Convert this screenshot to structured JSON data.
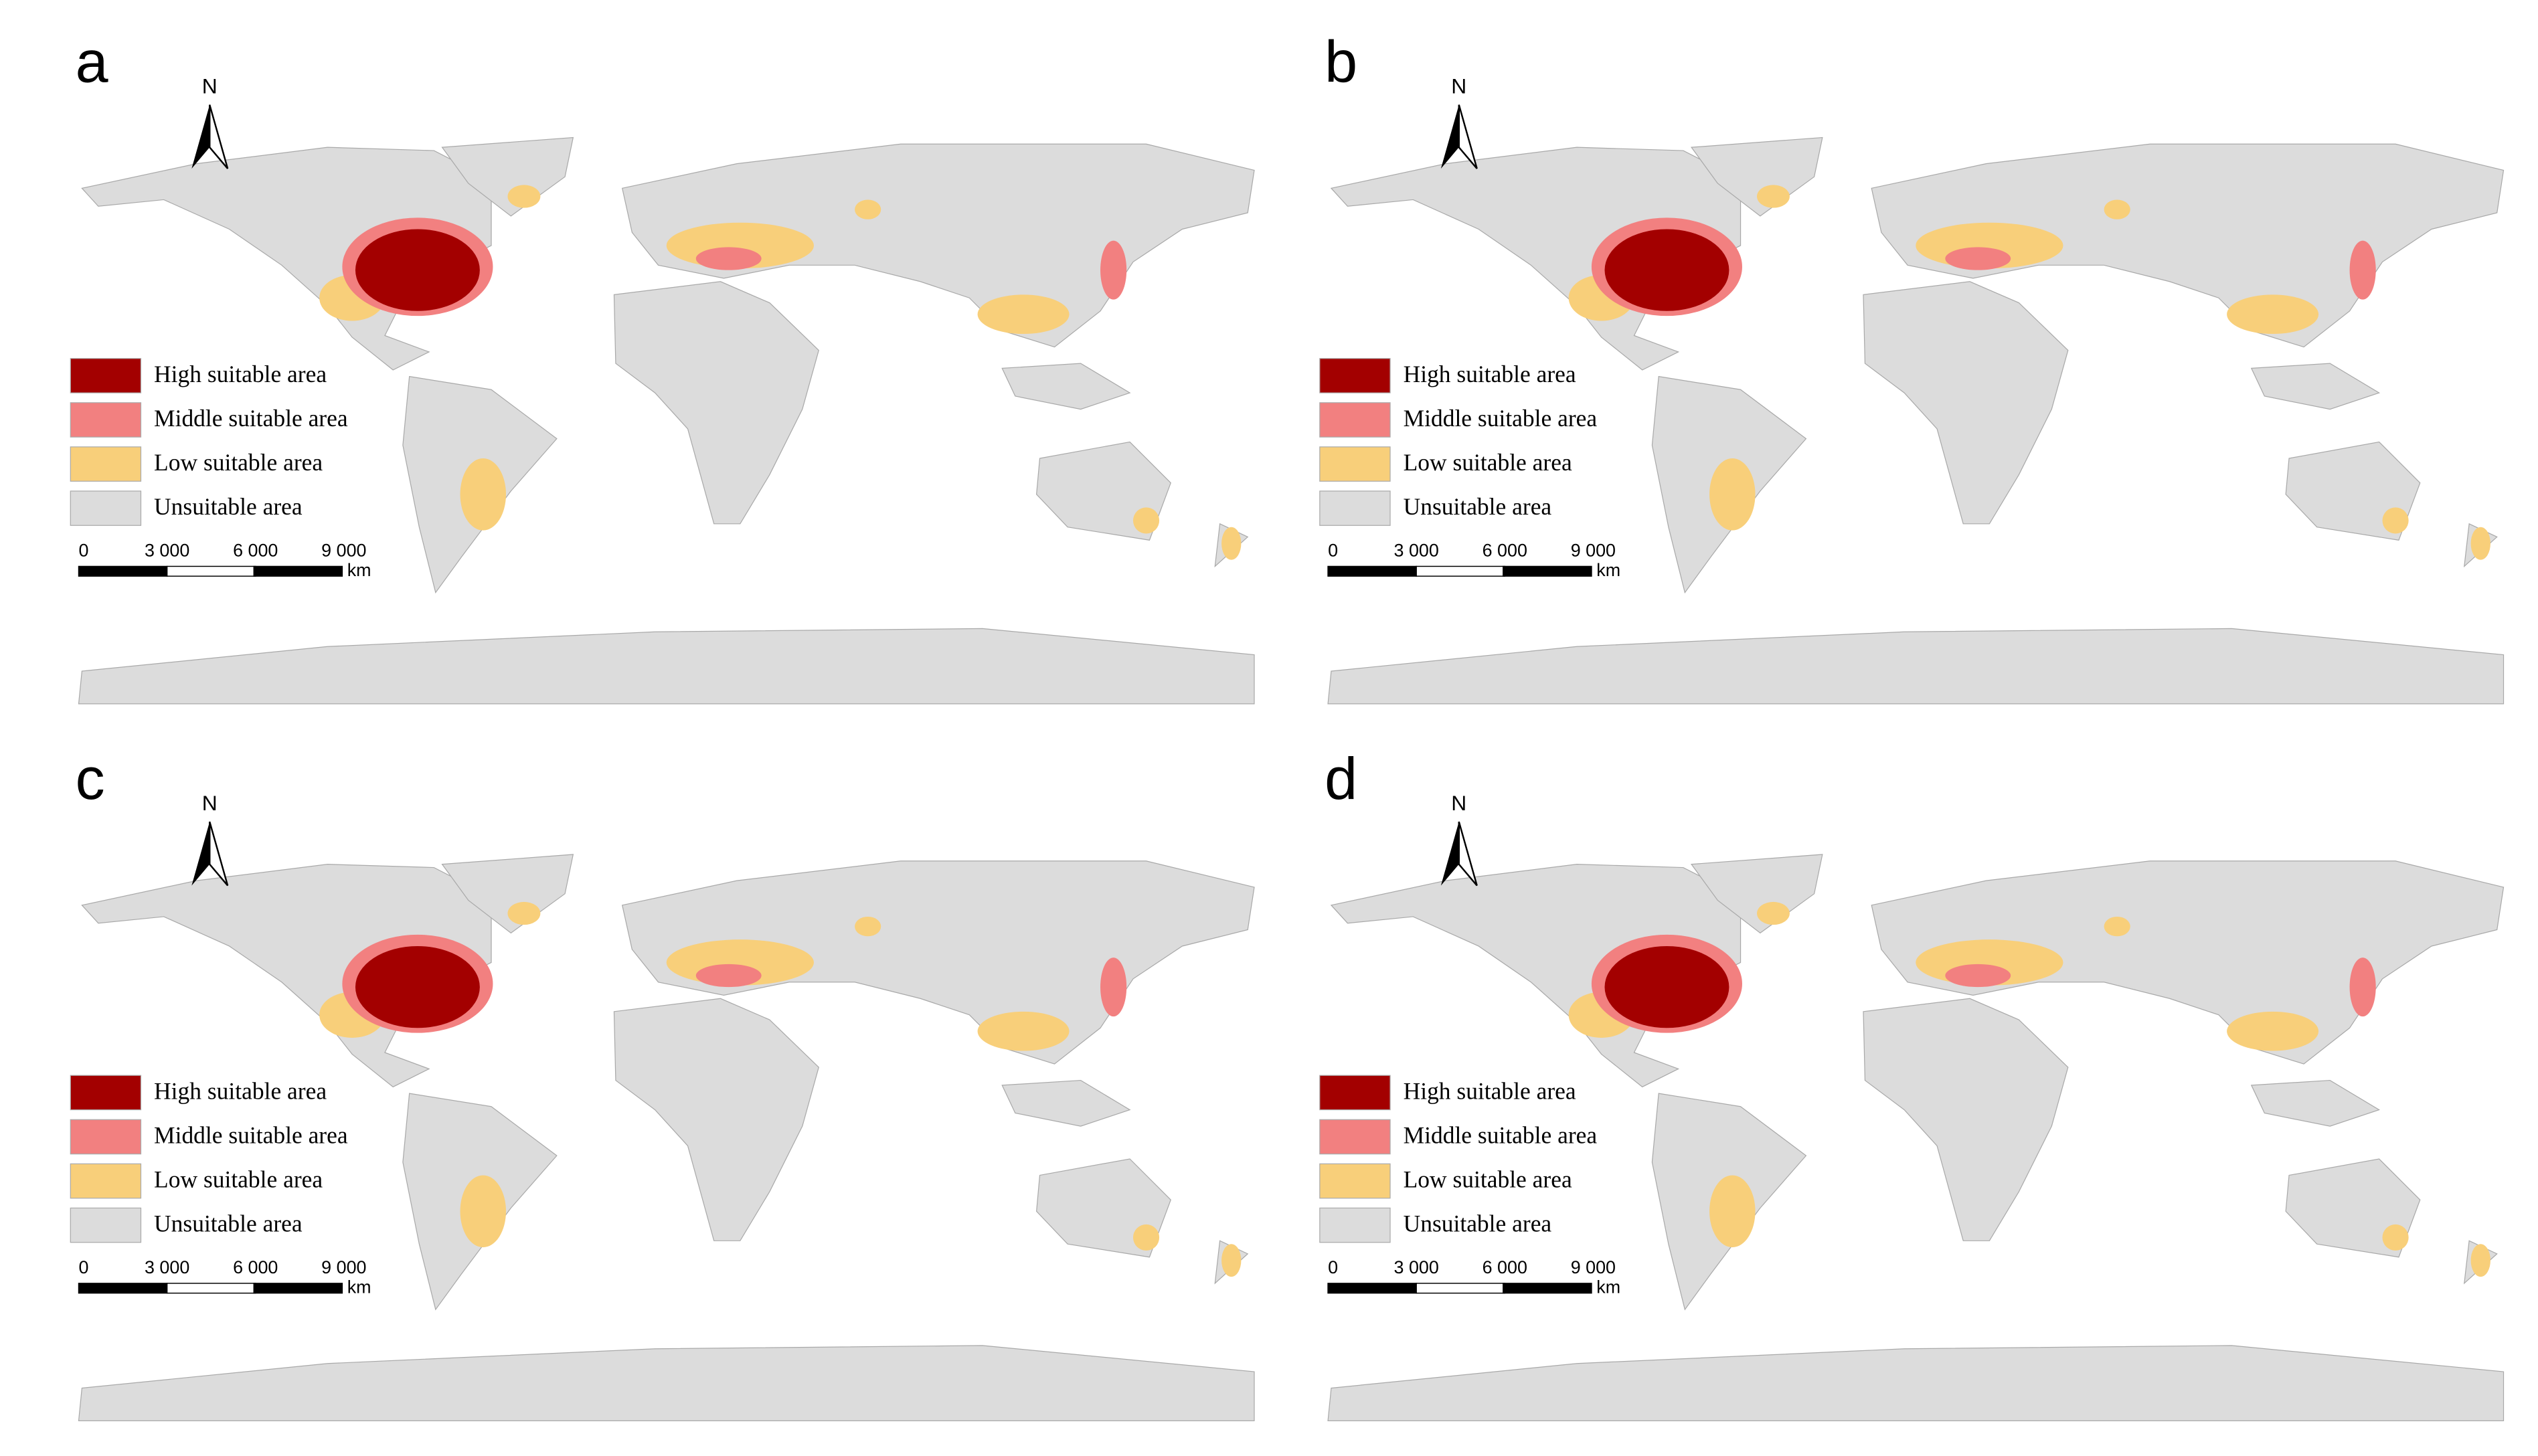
{
  "panels": [
    {
      "label": "a",
      "north": "N",
      "legend": [
        "High suitable area",
        "Middle suitable area",
        "Low suitable area",
        "Unsuitable area"
      ],
      "scale": [
        "0",
        "3 000",
        "6 000",
        "9 000"
      ],
      "unit": "km"
    },
    {
      "label": "b",
      "north": "N",
      "legend": [
        "High suitable area",
        "Middle suitable area",
        "Low suitable area",
        "Unsuitable area"
      ],
      "scale": [
        "0",
        "3 000",
        "6 000",
        "9 000"
      ],
      "unit": "km"
    },
    {
      "label": "c",
      "north": "N",
      "legend": [
        "High suitable area",
        "Middle suitable area",
        "Low suitable area",
        "Unsuitable area"
      ],
      "scale": [
        "0",
        "3 000",
        "6 000",
        "9 000"
      ],
      "unit": "km"
    },
    {
      "label": "d",
      "north": "N",
      "legend": [
        "High suitable area",
        "Middle suitable area",
        "Low suitable area",
        "Unsuitable area"
      ],
      "scale": [
        "0",
        "3 000",
        "6 000",
        "9 000"
      ],
      "unit": "km"
    }
  ]
}
